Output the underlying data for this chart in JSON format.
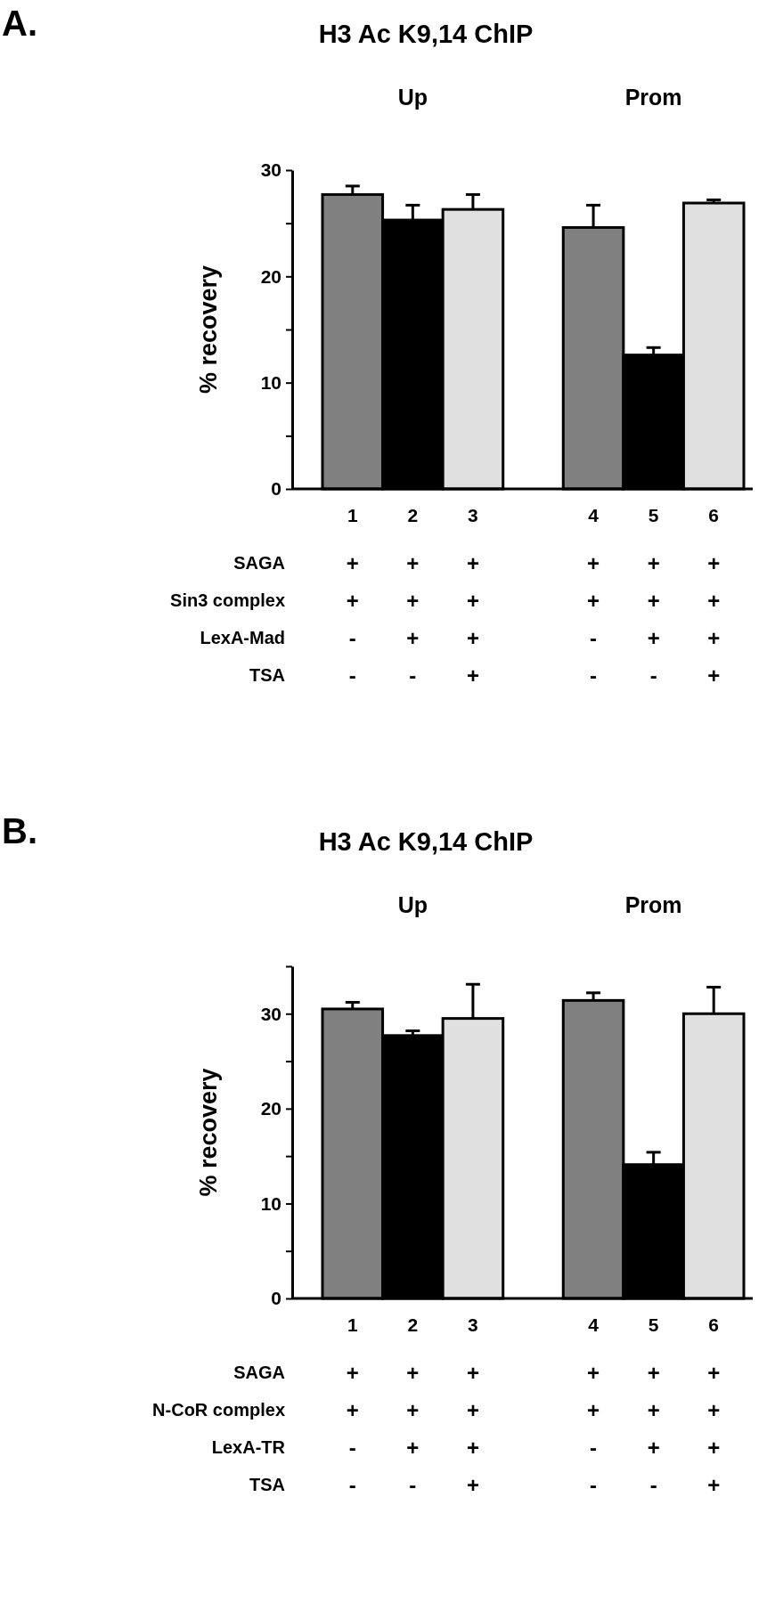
{
  "chart_data": [
    {
      "type": "bar",
      "title": "H3 Ac K9,14 ChIP",
      "ylabel": "% recovery",
      "categories": [
        "1",
        "2",
        "3",
        null,
        "4",
        "5",
        "6"
      ],
      "values": [
        27.7,
        25.3,
        26.3,
        null,
        24.6,
        12.6,
        26.9
      ],
      "colors": [
        "#808080",
        "#000000",
        "#e0e0e0",
        null,
        "#808080",
        "#000000",
        "#e0e0e0"
      ],
      "errors": [
        [
          27.7,
          28.5
        ],
        [
          25.3,
          26.7
        ],
        [
          26.3,
          27.7
        ],
        null,
        [
          24.6,
          26.7
        ],
        [
          12.6,
          13.3
        ],
        [
          26.9,
          27.2
        ]
      ],
      "ylim": [
        0,
        30
      ],
      "yticks": [
        0,
        {
          "value": 5,
          "label": null
        },
        10,
        {
          "value": 15,
          "label": null
        },
        20,
        {
          "value": 25,
          "label": null
        },
        30
      ],
      "annotations": [
        "A.",
        "Up",
        "Prom",
        "SAGA",
        "+",
        "+",
        "+",
        "+",
        "+",
        "+",
        "Sin3 complex",
        "+",
        "+",
        "+",
        "+",
        "+",
        "+",
        "LexA-Mad",
        "-",
        "+",
        "+",
        "-",
        "+",
        "+",
        "TSA",
        "-",
        "-",
        "+",
        "-",
        "-",
        "+"
      ]
    },
    {
      "type": "bar",
      "title": "H3 Ac K9,14 ChIP",
      "ylabel": "% recovery",
      "categories": [
        "1",
        "2",
        "3",
        null,
        "4",
        "5",
        "6"
      ],
      "values": [
        30.5,
        27.7,
        29.5,
        null,
        31.4,
        14.1,
        30.0
      ],
      "colors": [
        "#808080",
        "#000000",
        "#e0e0e0",
        null,
        "#808080",
        "#000000",
        "#e0e0e0"
      ],
      "errors": [
        [
          30.5,
          31.2
        ],
        [
          27.7,
          28.2
        ],
        [
          29.5,
          33.1
        ],
        null,
        [
          31.4,
          32.2
        ],
        [
          14.1,
          15.4
        ],
        [
          30.0,
          32.8
        ]
      ],
      "ylim": [
        0,
        35
      ],
      "yticks": [
        0,
        {
          "value": 5,
          "label": null
        },
        10,
        {
          "value": 15,
          "label": null
        },
        20,
        {
          "value": 25,
          "label": null
        },
        30,
        {
          "value": 35,
          "label": null
        }
      ],
      "annotations": [
        "B.",
        "Up",
        "Prom",
        "SAGA",
        "+",
        "+",
        "+",
        "+",
        "+",
        "+",
        "N-CoR complex",
        "+",
        "+",
        "+",
        "+",
        "+",
        "+",
        "LexA-TR",
        "-",
        "+",
        "+",
        "-",
        "+",
        "+",
        "TSA",
        "-",
        "-",
        "+",
        "-",
        "-",
        "+"
      ]
    }
  ]
}
